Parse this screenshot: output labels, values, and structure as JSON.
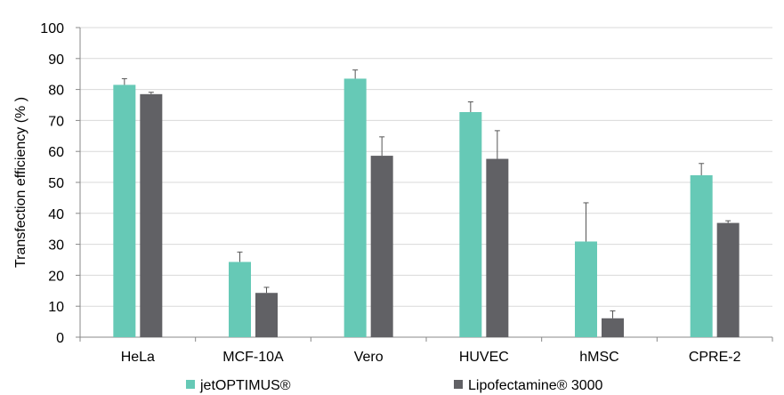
{
  "chart_data": {
    "type": "bar",
    "title": "",
    "xlabel": "",
    "ylabel": "Transfection efficiency (% )",
    "ylim": [
      0,
      100
    ],
    "yticks": [
      0,
      10,
      20,
      30,
      40,
      50,
      60,
      70,
      80,
      90,
      100
    ],
    "grid": true,
    "legend_position": "bottom",
    "categories": [
      "HeLa",
      "MCF-10A",
      "Vero",
      "HUVEC",
      "hMSC",
      "CPRE-2"
    ],
    "series": [
      {
        "name": "jetOPTIMUS®",
        "color": "#66c9b6",
        "values": [
          81.5,
          24.3,
          83.5,
          72.7,
          30.9,
          52.3
        ],
        "errors": [
          2.0,
          3.2,
          2.8,
          3.3,
          12.5,
          3.8
        ]
      },
      {
        "name": "Lipofectamine® 3000",
        "color": "#616165",
        "values": [
          78.5,
          14.3,
          58.6,
          57.6,
          6.1,
          36.9
        ],
        "errors": [
          0.6,
          1.8,
          6.1,
          9.1,
          2.4,
          0.7
        ]
      }
    ]
  }
}
